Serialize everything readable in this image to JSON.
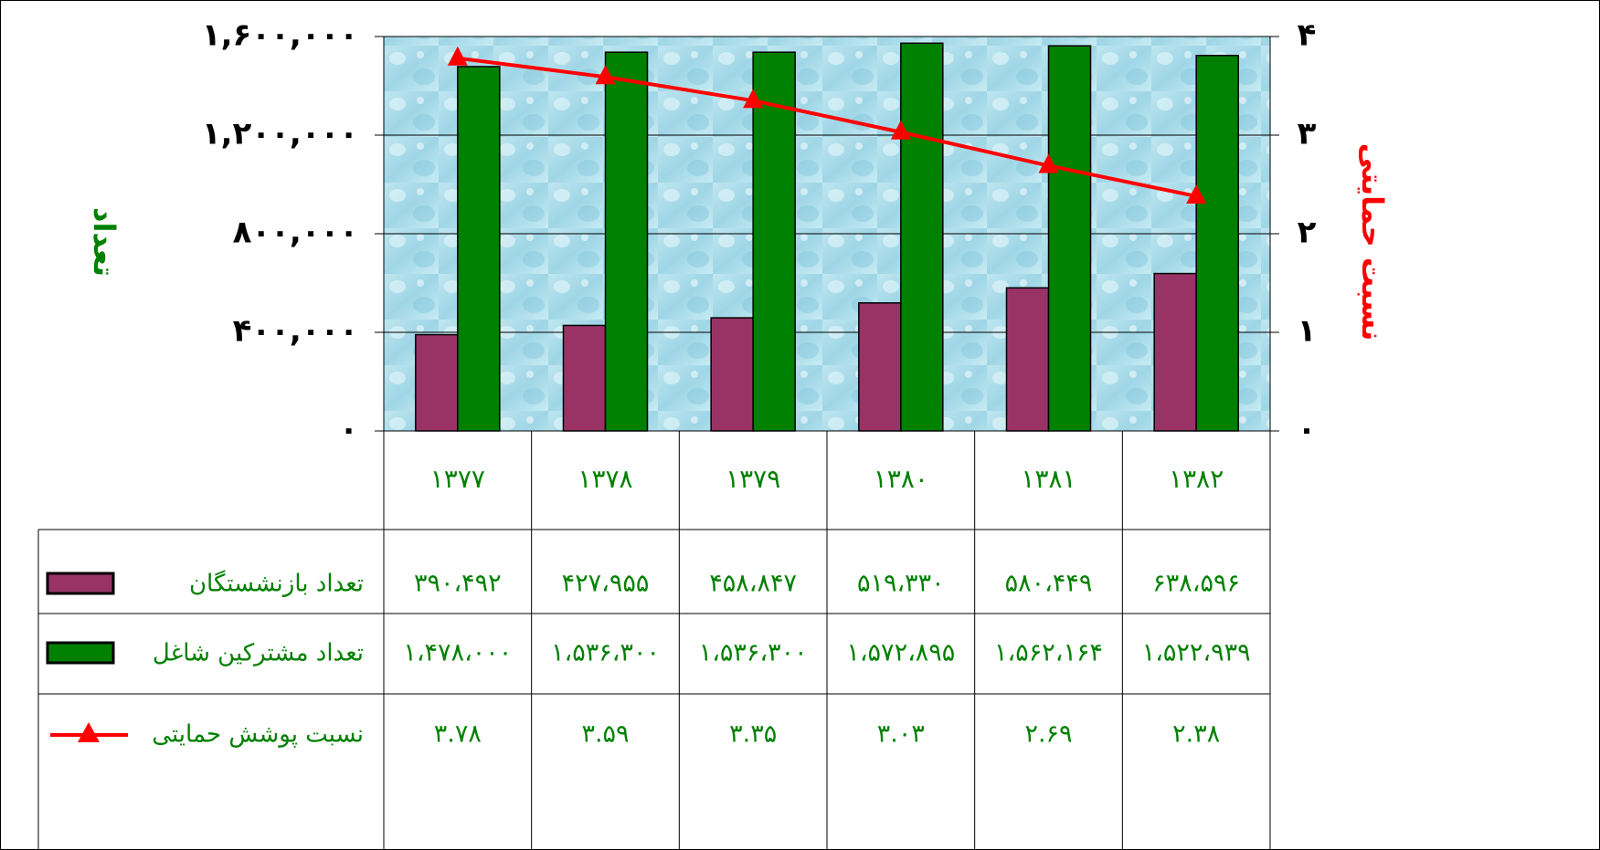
{
  "chart_data": {
    "type": "bar_line",
    "ylabel": "تعداد",
    "y2label": "نسبت حمایتی",
    "categories": [
      "۱۳۷۷",
      "۱۳۷۸",
      "۱۳۷۹",
      "۱۳۸۰",
      "۱۳۸۱",
      "۱۳۸۲"
    ],
    "series": [
      {
        "name": "تعداد بازنشستگان",
        "type": "bar",
        "color": "#993366",
        "values": [
          390492,
          427955,
          458847,
          519330,
          580449,
          638596
        ],
        "value_labels": [
          "۳۹۰،۴۹۲",
          "۴۲۷،۹۵۵",
          "۴۵۸،۸۴۷",
          "۵۱۹،۳۳۰",
          "۵۸۰،۴۴۹",
          "۶۳۸،۵۹۶"
        ]
      },
      {
        "name": "تعداد مشترکین شاغل",
        "type": "bar",
        "color": "#008000",
        "values": [
          1478000,
          1536300,
          1536300,
          1572895,
          1562164,
          1522939
        ],
        "value_labels": [
          "۱،۴۷۸،۰۰۰",
          "۱،۵۳۶،۳۰۰",
          "۱،۵۳۶،۳۰۰",
          "۱،۵۷۲،۸۹۵",
          "۱،۵۶۲،۱۶۴",
          "۱،۵۲۲،۹۳۹"
        ]
      },
      {
        "name": "نسبت پوشش حمایتی",
        "type": "line",
        "axis": "y2",
        "color": "#ff0000",
        "values": [
          3.78,
          3.59,
          3.35,
          3.03,
          2.69,
          2.38
        ],
        "value_labels": [
          "۳.۷۸",
          "۳.۵۹",
          "۳.۳۵",
          "۳.۰۳",
          "۲.۶۹",
          "۲.۳۸"
        ]
      }
    ],
    "ylim": [
      0,
      1600000
    ],
    "yticks": [
      {
        "value": 0,
        "label": "۰"
      },
      {
        "value": 400000,
        "label": "۴۰۰,۰۰۰"
      },
      {
        "value": 800000,
        "label": "۸۰۰,۰۰۰"
      },
      {
        "value": 1200000,
        "label": "۱,۲۰۰,۰۰۰"
      },
      {
        "value": 1600000,
        "label": "۱,۶۰۰,۰۰۰"
      }
    ],
    "y2lim": [
      0,
      4
    ],
    "y2ticks": [
      {
        "value": 0,
        "label": "۰"
      },
      {
        "value": 1,
        "label": "۱"
      },
      {
        "value": 2,
        "label": "۲"
      },
      {
        "value": 3,
        "label": "۳"
      },
      {
        "value": 4,
        "label": "۴"
      }
    ],
    "grid": true
  }
}
